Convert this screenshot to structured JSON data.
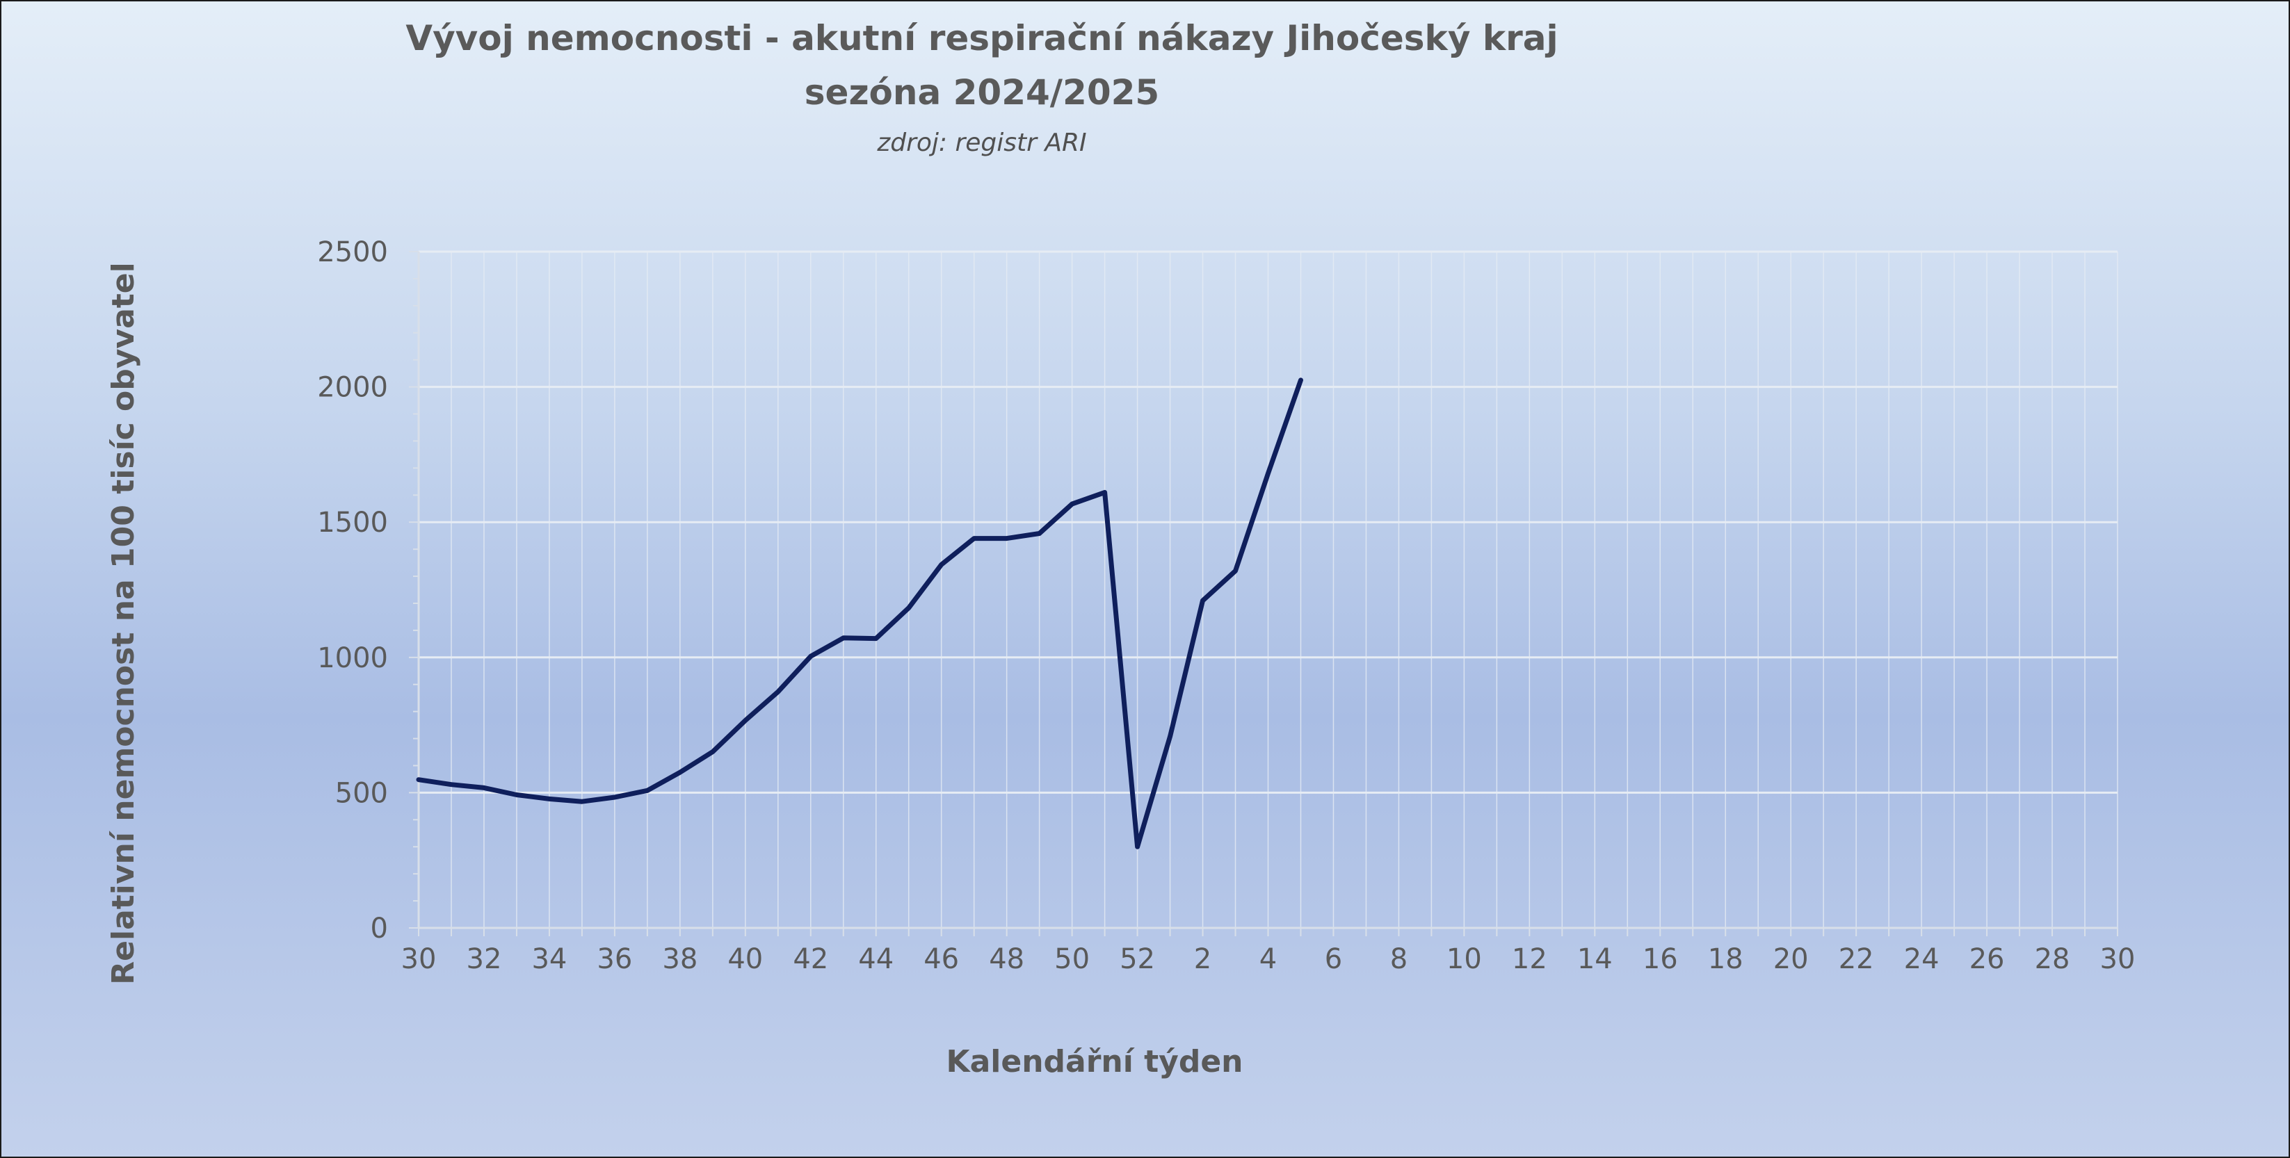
{
  "chart_data": {
    "type": "line",
    "title_line1": "Vývoj nemocnosti - akutní respirační nákazy Jihočeský kraj",
    "title_line2": "sezóna 2024/2025",
    "subtitle": "zdroj: registr ARI",
    "xlabel": "Kalendářní týden",
    "ylabel": "Relativní nemocnost na 100 tisíc obyvatel",
    "ylim": [
      0,
      2500
    ],
    "yticks": [
      0,
      500,
      1000,
      1500,
      2000,
      2500
    ],
    "grid": true,
    "x_weeks": [
      30,
      31,
      32,
      33,
      34,
      35,
      36,
      37,
      38,
      39,
      40,
      41,
      42,
      43,
      44,
      45,
      46,
      47,
      48,
      49,
      50,
      51,
      52,
      1,
      2,
      3,
      4,
      5,
      6,
      7,
      8,
      9,
      10,
      11,
      12,
      13,
      14,
      15,
      16,
      17,
      18,
      19,
      20,
      21,
      22,
      23,
      24,
      25,
      26,
      27,
      28,
      29,
      30
    ],
    "x_tick_labels": [
      "30",
      "32",
      "34",
      "36",
      "38",
      "40",
      "42",
      "44",
      "46",
      "48",
      "50",
      "52",
      "2",
      "4",
      "6",
      "8",
      "10",
      "12",
      "14",
      "16",
      "18",
      "20",
      "22",
      "24",
      "26",
      "28",
      "30"
    ],
    "series": [
      {
        "color": "#0f1f5c",
        "values": [
          548,
          530,
          518,
          492,
          477,
          467,
          483,
          508,
          575,
          651,
          767,
          873,
          1004,
          1072,
          1070,
          1183,
          1343,
          1440,
          1440,
          1458,
          1567,
          1610,
          300,
          708,
          1210,
          1320,
          1680,
          2025
        ]
      }
    ],
    "colors": {
      "gridline": "#e6ecf4",
      "axis": "#d8dfe9",
      "text": "#595959"
    }
  }
}
